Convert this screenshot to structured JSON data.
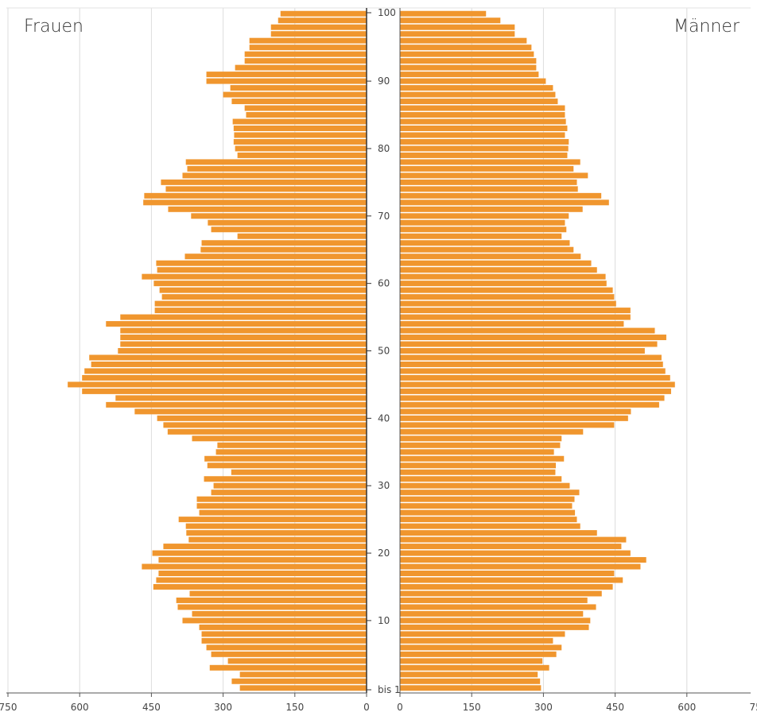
{
  "chart_data": {
    "type": "bar",
    "orientation": "horizontal",
    "title": "",
    "left_label": "Frauen",
    "right_label": "Männer",
    "age_axis_ticks": [
      "bis 1",
      "10",
      "20",
      "30",
      "40",
      "50",
      "60",
      "70",
      "80",
      "90",
      "100"
    ],
    "x_ticks_left": [
      "750",
      "600",
      "450",
      "300",
      "150",
      "0"
    ],
    "x_ticks_right": [
      "0",
      "150",
      "300",
      "450",
      "600",
      "750"
    ],
    "xlim": [
      0,
      750
    ],
    "ylim": [
      0,
      100
    ],
    "grid": true,
    "bar_color": "#f0962e",
    "ages": [
      0,
      1,
      2,
      3,
      4,
      5,
      6,
      7,
      8,
      9,
      10,
      11,
      12,
      13,
      14,
      15,
      16,
      17,
      18,
      19,
      20,
      21,
      22,
      23,
      24,
      25,
      26,
      27,
      28,
      29,
      30,
      31,
      32,
      33,
      34,
      35,
      36,
      37,
      38,
      39,
      40,
      41,
      42,
      43,
      44,
      45,
      46,
      47,
      48,
      49,
      50,
      51,
      52,
      53,
      54,
      55,
      56,
      57,
      58,
      59,
      60,
      61,
      62,
      63,
      64,
      65,
      66,
      67,
      68,
      69,
      70,
      71,
      72,
      73,
      74,
      75,
      76,
      77,
      78,
      79,
      80,
      81,
      82,
      83,
      84,
      85,
      86,
      87,
      88,
      89,
      90,
      91,
      92,
      93,
      94,
      95,
      96,
      97,
      98,
      99,
      100
    ],
    "series": [
      {
        "name": "Frauen",
        "values": [
          265,
          282,
          265,
          328,
          290,
          325,
          335,
          345,
          345,
          350,
          385,
          365,
          395,
          398,
          370,
          446,
          440,
          435,
          470,
          435,
          448,
          425,
          372,
          377,
          378,
          393,
          350,
          355,
          355,
          325,
          320,
          340,
          283,
          333,
          339,
          315,
          312,
          365,
          416,
          425,
          438,
          485,
          545,
          525,
          595,
          625,
          595,
          590,
          576,
          580,
          520,
          515,
          515,
          515,
          545,
          515,
          443,
          443,
          428,
          433,
          445,
          470,
          438,
          440,
          380,
          347,
          345,
          270,
          325,
          332,
          367,
          415,
          467,
          465,
          420,
          430,
          385,
          375,
          378,
          270,
          275,
          278,
          277,
          278,
          280,
          252,
          255,
          282,
          300,
          285,
          335,
          335,
          275,
          255,
          255,
          245,
          245,
          200,
          200,
          185,
          180
        ]
      },
      {
        "name": "Männer",
        "values": [
          295,
          293,
          288,
          312,
          298,
          327,
          338,
          320,
          345,
          395,
          398,
          383,
          410,
          392,
          422,
          445,
          466,
          448,
          503,
          515,
          482,
          463,
          473,
          412,
          377,
          370,
          366,
          360,
          365,
          375,
          355,
          338,
          325,
          326,
          343,
          322,
          335,
          338,
          383,
          448,
          477,
          483,
          542,
          553,
          567,
          575,
          565,
          555,
          550,
          547,
          512,
          538,
          557,
          533,
          468,
          482,
          482,
          452,
          448,
          445,
          432,
          430,
          412,
          400,
          378,
          363,
          355,
          338,
          348,
          345,
          353,
          382,
          437,
          421,
          372,
          370,
          393,
          363,
          377,
          350,
          352,
          353,
          345,
          350,
          347,
          345,
          345,
          330,
          325,
          320,
          305,
          290,
          285,
          285,
          280,
          275,
          265,
          240,
          240,
          210,
          180
        ]
      }
    ]
  }
}
